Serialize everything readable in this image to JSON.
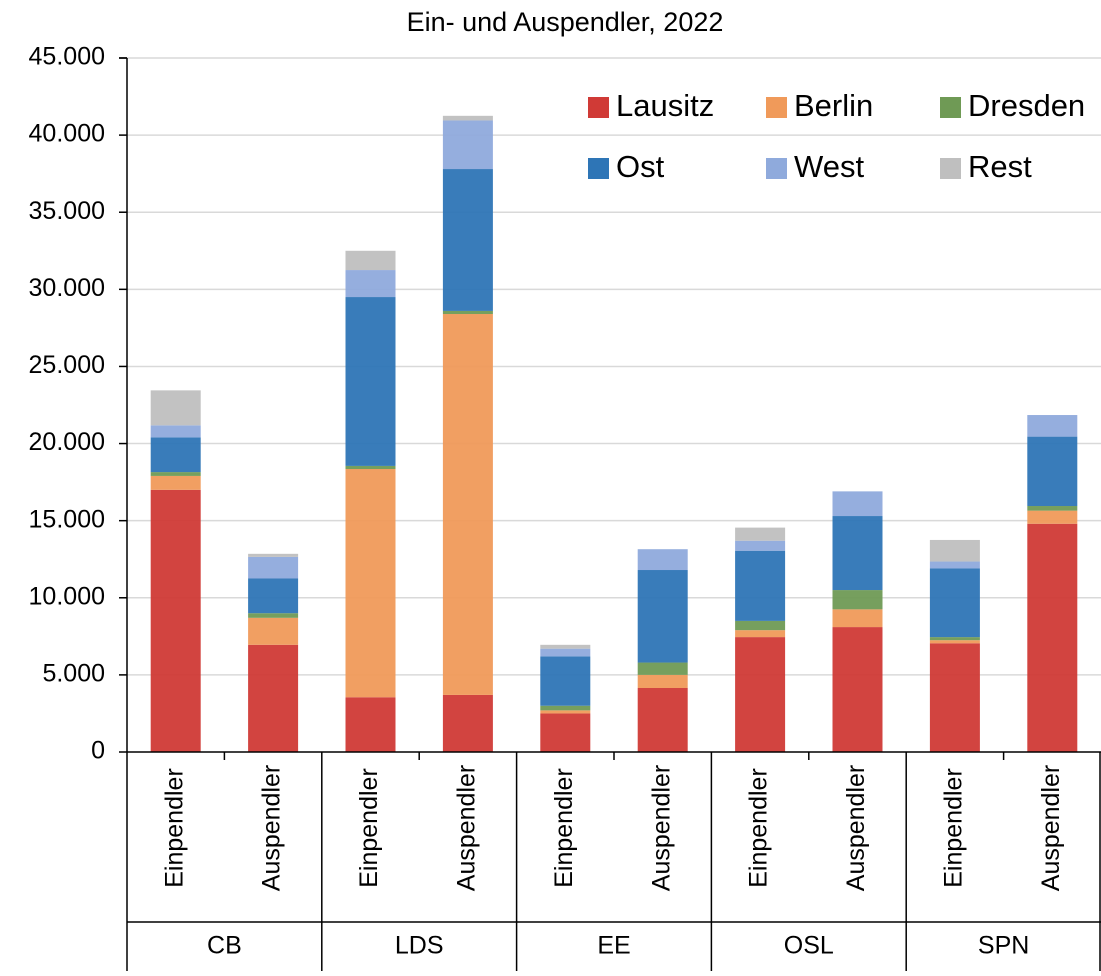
{
  "chart_data": {
    "type": "stacked_bar",
    "title": "Ein- und Auspendler, 2022",
    "categories": [
      "Einpendler",
      "Auspendler",
      "Einpendler",
      "Auspendler",
      "Einpendler",
      "Auspendler",
      "Einpendler",
      "Auspendler",
      "Einpendler",
      "Auspendler"
    ],
    "groups": [
      "CB",
      "LDS",
      "EE",
      "OSL",
      "SPN"
    ],
    "series": [
      {
        "name": "Lausitz",
        "color": "#d03a36",
        "values": [
          17000,
          6950,
          3550,
          3700,
          2500,
          4150,
          7450,
          8100,
          7050,
          14800
        ]
      },
      {
        "name": "Berlin",
        "color": "#f09a5a",
        "values": [
          900,
          1750,
          14800,
          24700,
          200,
          850,
          450,
          1150,
          200,
          850
        ]
      },
      {
        "name": "Dresden",
        "color": "#6f9a55",
        "values": [
          250,
          300,
          200,
          200,
          300,
          800,
          600,
          1250,
          200,
          300
        ]
      },
      {
        "name": "Ost",
        "color": "#2e75b6",
        "values": [
          2250,
          2250,
          10950,
          9200,
          3200,
          6000,
          4550,
          4800,
          4450,
          4500
        ]
      },
      {
        "name": "West",
        "color": "#8faadc",
        "values": [
          780,
          1400,
          1750,
          3150,
          500,
          1350,
          650,
          1600,
          450,
          1400
        ]
      },
      {
        "name": "Rest",
        "color": "#bfbfbf",
        "values": [
          2270,
          200,
          1250,
          300,
          250,
          0,
          850,
          0,
          1400,
          0
        ]
      }
    ],
    "ylim": [
      0,
      45000
    ],
    "yticks": [
      0,
      {
        "value": 5000,
        "label": "5.000"
      },
      {
        "value": 10000,
        "label": "10.000"
      },
      {
        "value": 15000,
        "label": "15.000"
      },
      {
        "value": 20000,
        "label": "20.000"
      },
      {
        "value": 25000,
        "label": "25.000"
      },
      {
        "value": 30000,
        "label": "30.000"
      },
      {
        "value": 35000,
        "label": "35.000"
      },
      {
        "value": 40000,
        "label": "40.000"
      },
      {
        "value": 45000,
        "label": "45.000"
      }
    ],
    "grid": true,
    "legend": "top-right"
  }
}
